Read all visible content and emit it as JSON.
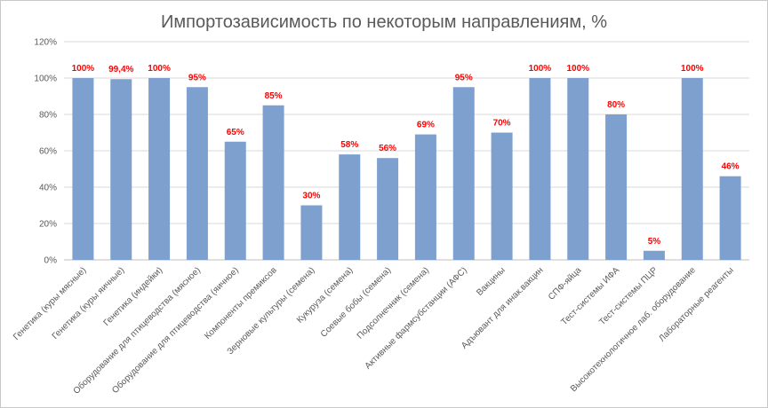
{
  "chart_data": {
    "type": "bar",
    "title": "Импортозависимость по некоторым направлениям, %",
    "categories": [
      "Генетика (куры мясные)",
      "Генетика (куры яичные)",
      "Генетика (индейки)",
      "Оборудование для птицеводства (мясное)",
      "Оборудование для птицеводства (яичное)",
      "Компоненты премиксов",
      "Зерновые культуры (семена)",
      "Кукуруза (семена)",
      "Соевые бобы (семена)",
      "Подсолнечник (семена)",
      "Активные фармсубстанции (АФС)",
      "Вакцины",
      "Адъювант для инак.вакцин",
      "СПФ-яйца",
      "Тест-системы ИФА",
      "Тест-системы ПЦР",
      "Высокотехнологичное лаб. оборудование",
      "Лабораторные реагенты"
    ],
    "values": [
      100,
      99.4,
      100,
      95,
      65,
      85,
      30,
      58,
      56,
      69,
      95,
      70,
      100,
      100,
      80,
      5,
      100,
      46
    ],
    "data_labels": [
      "100%",
      "99,4%",
      "100%",
      "95%",
      "65%",
      "85%",
      "30%",
      "58%",
      "56%",
      "69%",
      "95%",
      "70%",
      "100%",
      "100%",
      "80%",
      "5%",
      "100%",
      "46%"
    ],
    "yticks": [
      "0%",
      "20%",
      "40%",
      "60%",
      "80%",
      "100%",
      "120%"
    ],
    "ylim": [
      0,
      120
    ],
    "grid": true,
    "legend": "none",
    "xlabel": "",
    "ylabel": ""
  },
  "colors": {
    "bar": "#7da0cf",
    "data_label": "#ff0000",
    "text": "#595959",
    "grid": "#d9d9d9"
  }
}
